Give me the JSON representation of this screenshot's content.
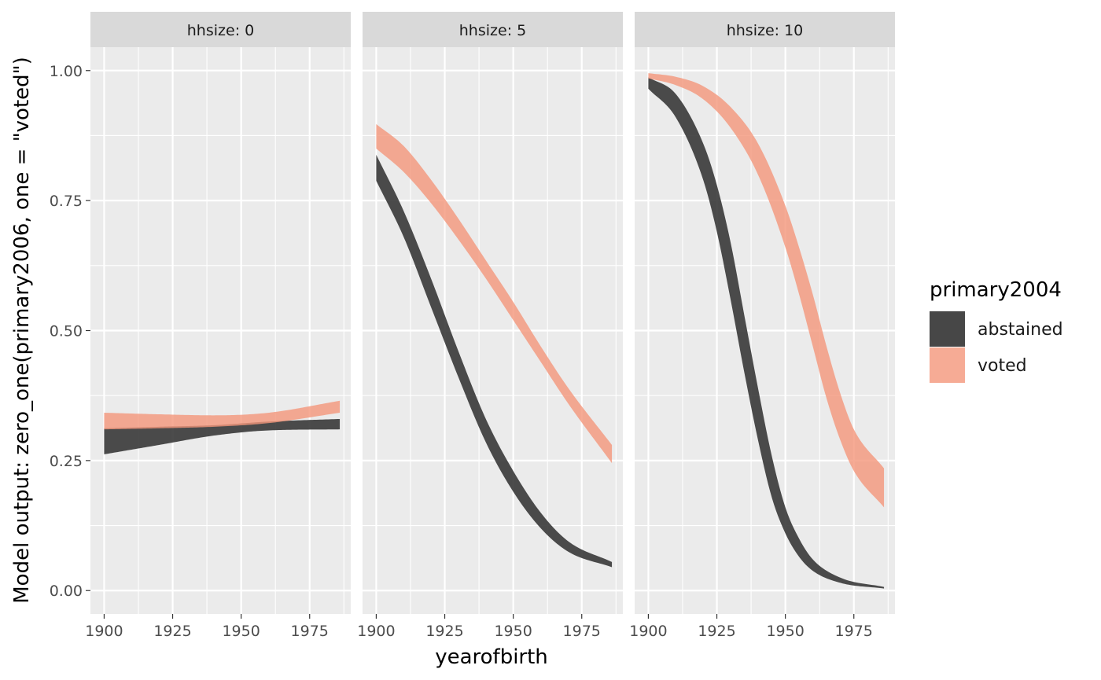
{
  "chart_data": {
    "type": "area",
    "facet_var": "hhsize",
    "facets": [
      {
        "label": "hhsize: 0",
        "series": [
          {
            "name": "abstained",
            "x": [
              1900,
              1920,
              1940,
              1960,
              1986
            ],
            "lower": [
              0.262,
              0.28,
              0.298,
              0.308,
              0.31
            ],
            "upper": [
              0.312,
              0.315,
              0.318,
              0.325,
              0.33
            ]
          },
          {
            "name": "voted",
            "x": [
              1900,
              1920,
              1940,
              1960,
              1986
            ],
            "lower": [
              0.31,
              0.312,
              0.315,
              0.322,
              0.342
            ],
            "upper": [
              0.342,
              0.339,
              0.337,
              0.342,
              0.365
            ]
          }
        ]
      },
      {
        "label": "hhsize: 5",
        "series": [
          {
            "name": "abstained",
            "x": [
              1900,
              1910,
              1920,
              1930,
              1940,
              1950,
              1960,
              1970,
              1986
            ],
            "lower": [
              0.788,
              0.68,
              0.545,
              0.41,
              0.285,
              0.19,
              0.12,
              0.075,
              0.045
            ],
            "upper": [
              0.838,
              0.73,
              0.6,
              0.46,
              0.33,
              0.23,
              0.15,
              0.095,
              0.055
            ]
          },
          {
            "name": "voted",
            "x": [
              1900,
              1910,
              1920,
              1930,
              1940,
              1950,
              1960,
              1970,
              1986
            ],
            "lower": [
              0.85,
              0.805,
              0.745,
              0.675,
              0.6,
              0.52,
              0.44,
              0.36,
              0.245
            ],
            "upper": [
              0.897,
              0.855,
              0.79,
              0.715,
              0.635,
              0.555,
              0.47,
              0.39,
              0.28
            ]
          }
        ]
      },
      {
        "label": "hhsize: 10",
        "series": [
          {
            "name": "abstained",
            "x": [
              1900,
              1910,
              1920,
              1925,
              1930,
              1935,
              1940,
              1945,
              1950,
              1955,
              1960,
              1970,
              1986
            ],
            "lower": [
              0.965,
              0.91,
              0.79,
              0.69,
              0.56,
              0.42,
              0.29,
              0.18,
              0.11,
              0.065,
              0.038,
              0.015,
              0.004
            ],
            "upper": [
              0.987,
              0.955,
              0.86,
              0.78,
              0.67,
              0.53,
              0.39,
              0.26,
              0.16,
              0.1,
              0.06,
              0.025,
              0.007
            ]
          },
          {
            "name": "voted",
            "x": [
              1900,
              1910,
              1920,
              1930,
              1940,
              1950,
              1955,
              1960,
              1965,
              1970,
              1975,
              1986
            ],
            "lower": [
              0.985,
              0.972,
              0.945,
              0.89,
              0.8,
              0.66,
              0.57,
              0.47,
              0.37,
              0.29,
              0.23,
              0.16
            ],
            "upper": [
              0.995,
              0.988,
              0.97,
              0.93,
              0.86,
              0.74,
              0.66,
              0.57,
              0.47,
              0.38,
              0.31,
              0.235
            ]
          }
        ]
      }
    ],
    "xlabel": "yearofbirth",
    "ylabel": "Model output: zero_one(primary2006, one = \"voted\")",
    "xlim": [
      1895,
      1990
    ],
    "ylim": [
      -0.045,
      1.045
    ],
    "xticks": [
      1900,
      1925,
      1950,
      1975
    ],
    "xminor": [
      1912.5,
      1937.5,
      1962.5,
      1987.5
    ],
    "yticks": [
      0,
      0.25,
      0.5,
      0.75,
      1
    ],
    "ytick_labels": [
      "0.00",
      "0.25",
      "0.50",
      "0.75",
      "1.00"
    ],
    "yminor": [
      0.125,
      0.375,
      0.625,
      0.875
    ],
    "grid": true,
    "legend": {
      "title": "primary2004",
      "placement": "right",
      "entries": [
        {
          "name": "abstained",
          "color": "#333333"
        },
        {
          "name": "voted",
          "color": "#f4967a"
        }
      ]
    },
    "colors": {
      "abstained": "#333333",
      "voted": "#f4967a",
      "panel_bg": "#ebebeb",
      "strip_bg": "#d9d9d9",
      "grid": "#ffffff"
    }
  }
}
